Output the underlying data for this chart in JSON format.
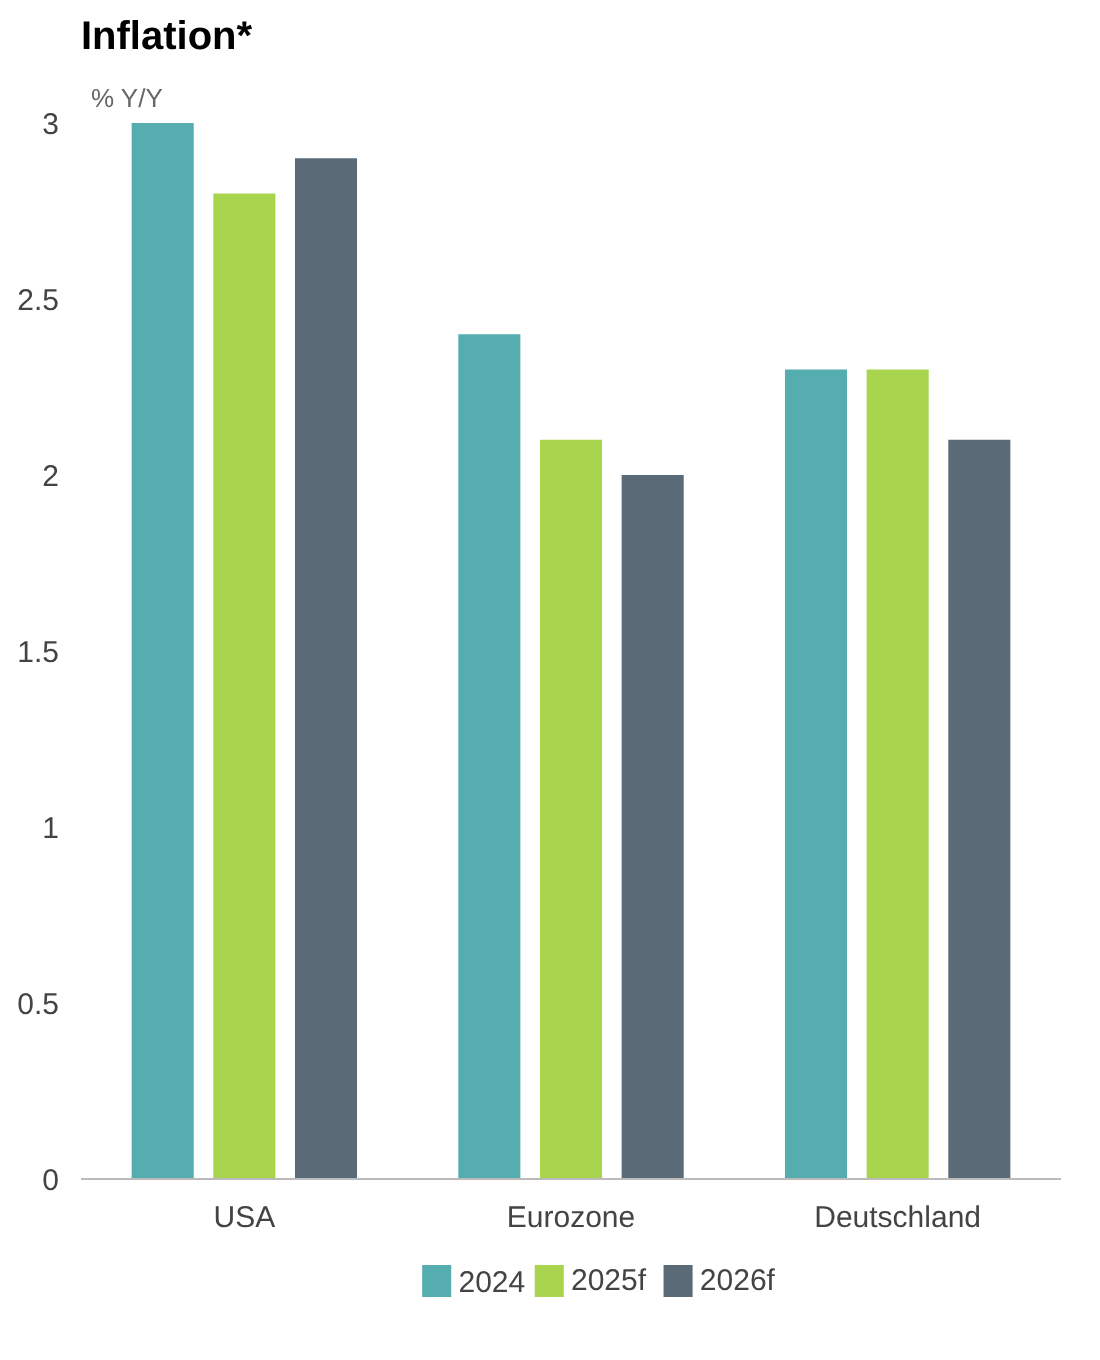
{
  "chart_data": {
    "type": "bar",
    "title": "Inflation*",
    "ylabel": "% Y/Y",
    "categories": [
      "USA",
      "Eurozone",
      "Deutschland"
    ],
    "series": [
      {
        "name": "2024",
        "color": "#56adb0",
        "values": [
          3.0,
          2.4,
          2.3
        ]
      },
      {
        "name": "2025f",
        "color": "#a8d44e",
        "values": [
          2.8,
          2.1,
          2.3
        ]
      },
      {
        "name": "2026f",
        "color": "#5a6b77",
        "values": [
          2.9,
          2.0,
          2.1
        ]
      }
    ],
    "ylim": [
      0,
      3
    ],
    "yticks": [
      0,
      0.5,
      1,
      1.5,
      2,
      2.5,
      3
    ],
    "grid": false,
    "legend": "bottom"
  }
}
